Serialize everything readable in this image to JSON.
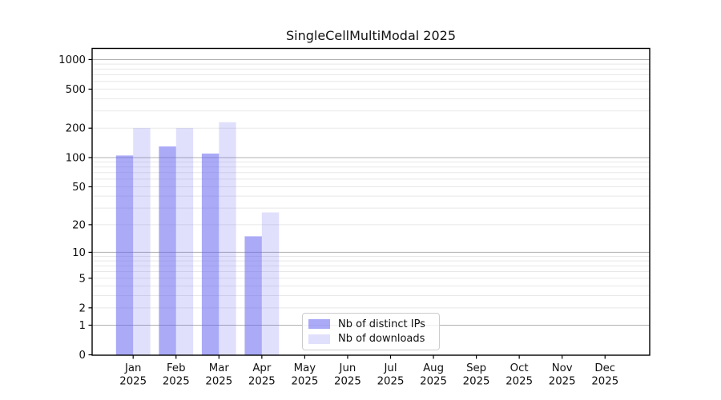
{
  "chart_data": {
    "type": "bar",
    "title": "SingleCellMultiModal 2025",
    "x": {
      "categories": [
        "Jan",
        "Feb",
        "Mar",
        "Apr",
        "May",
        "Jun",
        "Jul",
        "Aug",
        "Sep",
        "Oct",
        "Nov",
        "Dec"
      ],
      "year_label": "2025"
    },
    "series": [
      {
        "name": "Nb of distinct IPs",
        "color": "rgba(100,100,240,0.55)",
        "values": [
          105,
          130,
          110,
          15,
          null,
          null,
          null,
          null,
          null,
          null,
          null,
          null
        ]
      },
      {
        "name": "Nb of downloads",
        "color": "rgba(100,100,240,0.2)",
        "values": [
          200,
          200,
          230,
          27,
          null,
          null,
          null,
          null,
          null,
          null,
          null,
          null
        ]
      }
    ],
    "y_axis": {
      "scale": "log1p",
      "ticks": [
        0,
        1,
        2,
        5,
        10,
        20,
        50,
        100,
        200,
        500,
        1000
      ],
      "tick_labels": [
        "0",
        "1",
        "2",
        "5",
        "10",
        "20",
        "50",
        "100",
        "200",
        "500",
        "1000"
      ],
      "major_gridlines": [
        1,
        10,
        100,
        1000
      ],
      "ylim": [
        0,
        1400
      ],
      "grid": true
    },
    "legend": {
      "position": "lower-center-left",
      "frame": true
    }
  },
  "colors": {
    "axis": "#000000",
    "major_grid": "#b0b0b0",
    "minor_grid": "#e8e8e8",
    "text": "#111111",
    "legend_border": "#cccccc"
  }
}
